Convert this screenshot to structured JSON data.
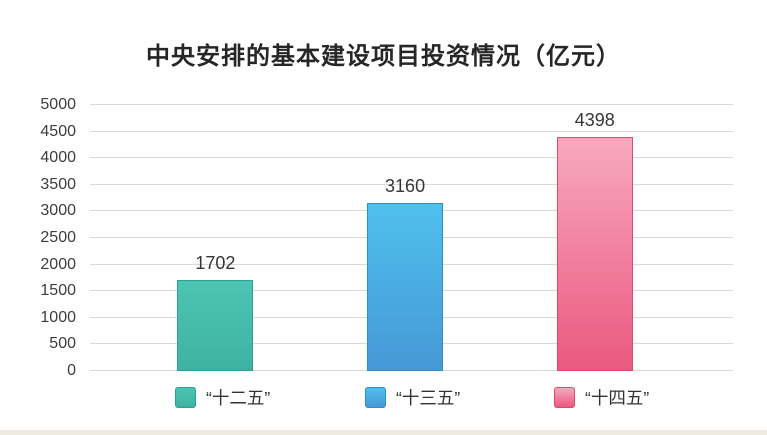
{
  "chart_data": {
    "type": "bar",
    "title": "中央安排的基本建设项目投资情况（亿元）",
    "categories": [
      "“十二五”",
      "“十三五”",
      "“十四五”"
    ],
    "values": [
      1702,
      3160,
      4398
    ],
    "xlabel": "",
    "ylabel": "",
    "ylim": [
      0,
      5000
    ],
    "yticks": [
      0,
      500,
      1000,
      1500,
      2000,
      2500,
      3000,
      3500,
      4000,
      4500,
      5000
    ],
    "grid": "horizontal",
    "gridline_color": "#d9d9d9",
    "legend_position": "bottom",
    "series_colors": [
      {
        "name": "“十二五”",
        "fill_top": "#4cc4b3",
        "fill_bottom": "#3fb3a3",
        "border": "#2ba094"
      },
      {
        "name": "“十三五”",
        "fill_top": "#4ec0ee",
        "fill_bottom": "#4698d6",
        "border": "#2f8dc8"
      },
      {
        "name": "“十四五”",
        "fill_top": "#f8a9bd",
        "fill_bottom": "#ea5880",
        "border": "#e0486f"
      }
    ]
  },
  "footer": {
    "strip_color": "#f1eae1"
  }
}
